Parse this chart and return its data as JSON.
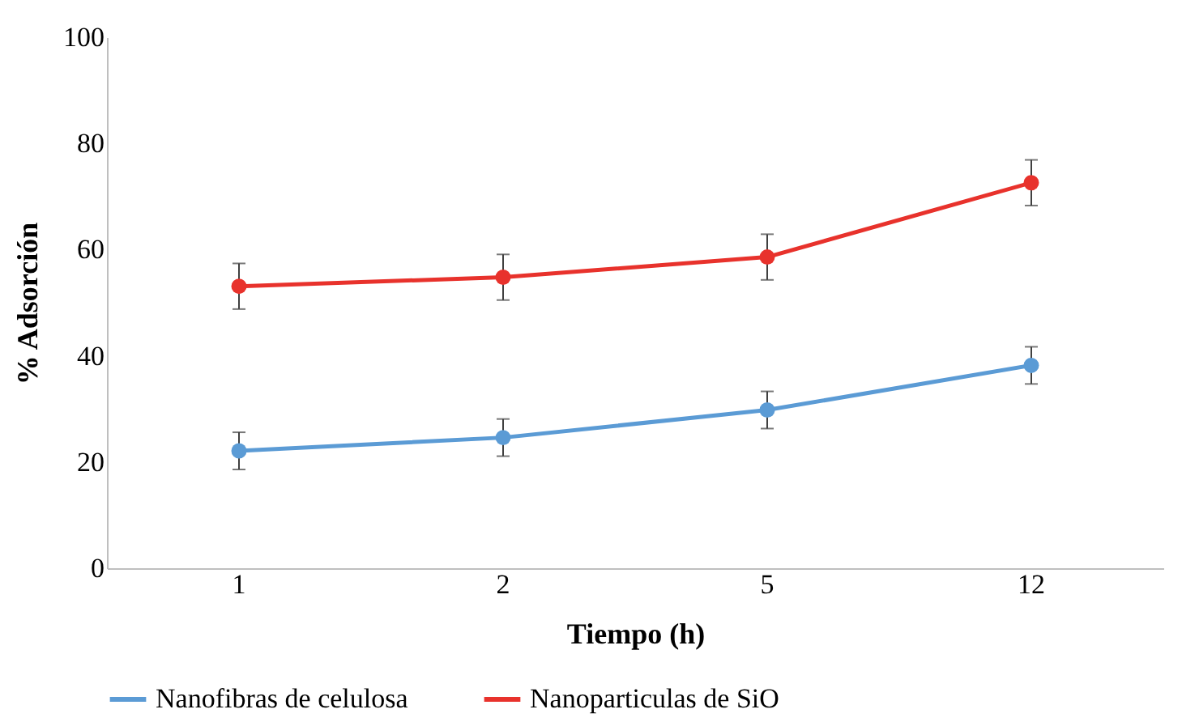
{
  "chart_data": {
    "type": "line",
    "xlabel": "Tiempo (h)",
    "ylabel": "% Adsorción",
    "categories": [
      "1",
      "2",
      "5",
      "12"
    ],
    "series": [
      {
        "name": "Nanofibras de celulosa",
        "color": "#5b9bd5",
        "values": [
          22.1,
          24.6,
          29.8,
          38.2
        ],
        "errors": [
          3.5,
          3.5,
          3.5,
          3.5
        ]
      },
      {
        "name": "Nanoparticulas de SiO",
        "color": "#e8322c",
        "values": [
          53.1,
          54.8,
          58.6,
          72.6
        ],
        "errors": [
          4.3,
          4.3,
          4.3,
          4.3
        ]
      }
    ],
    "ylim": [
      0,
      100
    ],
    "yticks": [
      0,
      20,
      40,
      60,
      80,
      100
    ],
    "legend": "bottom",
    "marker": "circle",
    "grid": false
  }
}
